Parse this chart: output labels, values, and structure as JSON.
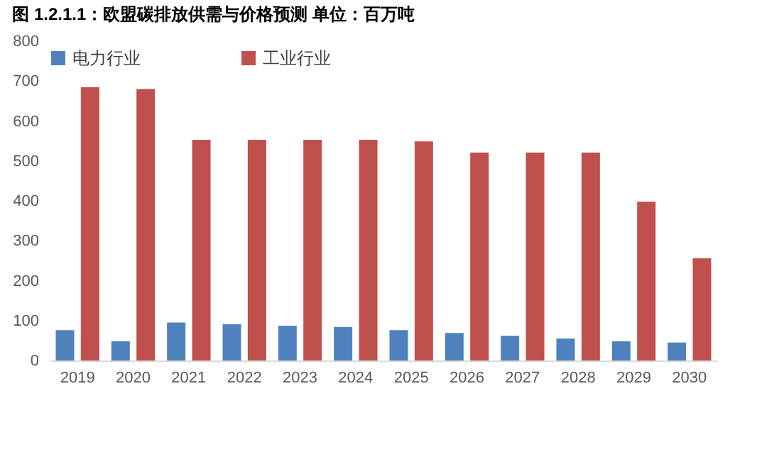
{
  "chart_data": {
    "type": "bar",
    "title": "图 1.2.1.1：欧盟碳排放供需与价格预测    单位：百万吨",
    "categories": [
      "2019",
      "2020",
      "2021",
      "2022",
      "2023",
      "2024",
      "2025",
      "2026",
      "2027",
      "2028",
      "2029",
      "2030"
    ],
    "series": [
      {
        "name": "电力行业",
        "color": "#4f81bd",
        "values": [
          76,
          48,
          95,
          91,
          87,
          84,
          76,
          69,
          62,
          55,
          48,
          45
        ]
      },
      {
        "name": "工业行业",
        "color": "#c0504d",
        "values": [
          685,
          680,
          553,
          553,
          553,
          553,
          549,
          521,
          521,
          521,
          398,
          256
        ]
      }
    ],
    "ylim": [
      0,
      800
    ],
    "yticks": [
      0,
      100,
      200,
      300,
      400,
      500,
      600,
      700,
      800
    ],
    "grid": false,
    "legend": "top"
  }
}
